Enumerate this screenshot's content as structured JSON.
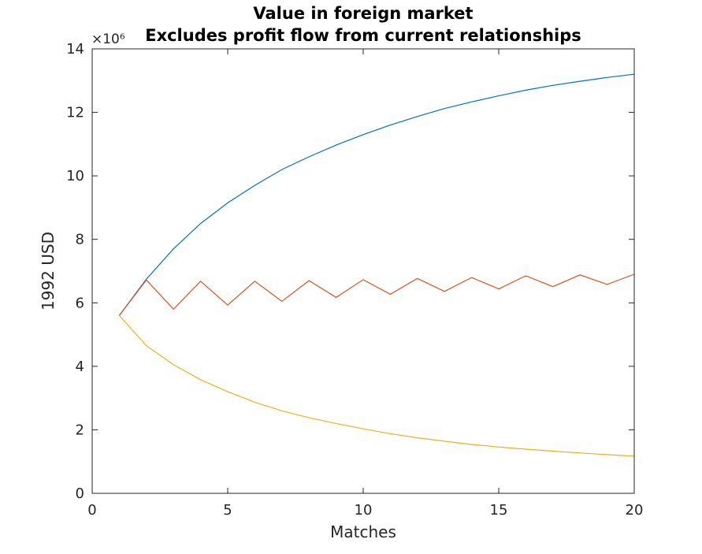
{
  "chart_data": {
    "type": "line",
    "title": "Value in foreign market",
    "subtitle": "Excludes profit flow from current relationships",
    "xlabel": "Matches",
    "ylabel": "1992 USD",
    "y_exponent_label": "×10⁶",
    "xlim": [
      0,
      20
    ],
    "ylim": [
      0,
      14
    ],
    "xticks": [
      0,
      5,
      10,
      15,
      20
    ],
    "yticks": [
      0,
      2,
      4,
      6,
      8,
      10,
      12,
      14
    ],
    "grid": false,
    "x": [
      1,
      2,
      3,
      4,
      5,
      6,
      7,
      8,
      9,
      10,
      11,
      12,
      13,
      14,
      15,
      16,
      17,
      18,
      19,
      20
    ],
    "series": [
      {
        "color": "#0072BD",
        "values": [
          5.6,
          6.75,
          7.7,
          8.5,
          9.15,
          9.7,
          10.2,
          10.6,
          10.97,
          11.3,
          11.6,
          11.87,
          12.12,
          12.33,
          12.52,
          12.7,
          12.85,
          12.98,
          13.1,
          13.2
        ]
      },
      {
        "color": "#D95319",
        "values": [
          5.6,
          6.72,
          5.8,
          6.68,
          5.93,
          6.68,
          6.05,
          6.7,
          6.17,
          6.73,
          6.27,
          6.77,
          6.36,
          6.8,
          6.44,
          6.85,
          6.51,
          6.88,
          6.58,
          6.9
        ]
      },
      {
        "color": "#EDB120",
        "values": [
          5.6,
          4.65,
          4.05,
          3.58,
          3.2,
          2.87,
          2.6,
          2.38,
          2.2,
          2.03,
          1.88,
          1.75,
          1.64,
          1.54,
          1.46,
          1.39,
          1.33,
          1.27,
          1.22,
          1.17
        ]
      }
    ]
  }
}
